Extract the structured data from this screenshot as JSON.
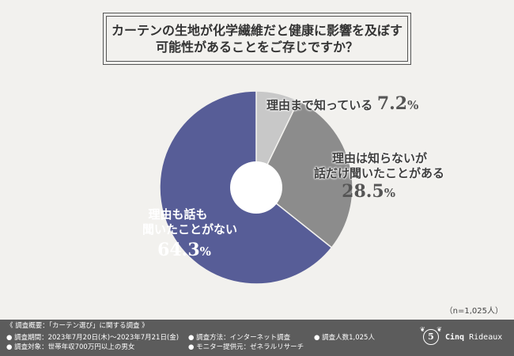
{
  "title": {
    "line1": "カーテンの生地が化学繊維だと健康に影響を及ぼす",
    "line2": "可能性があることをご存じですか？"
  },
  "chart_data": {
    "type": "pie",
    "donut": true,
    "slices": [
      {
        "label_line1": "理由まで知っている",
        "label_line2": "",
        "value": 7.2,
        "value_text": "7.2",
        "color": "#c8c8c8"
      },
      {
        "label_line1": "理由は知らないが",
        "label_line2": "話だけ聞いたことがある",
        "value": 28.5,
        "value_text": "28.5",
        "color": "#8c8c8c"
      },
      {
        "label_line1": "理由も話も",
        "label_line2": "聞いたことがない",
        "value": 64.3,
        "value_text": "64.3",
        "color": "#575d97"
      }
    ],
    "unit": "%",
    "start": "top, clockwise"
  },
  "note": "（n=1,025人）",
  "footer": {
    "heading": "《 調査概要：「カーテン選び」に関する調査 》",
    "period": "● 調査期間：2023年7月20日(木)～2023年7月21日(金)",
    "target": "● 調査対象：世帯年収700万円以上の男女",
    "method": "● 調査方法：インターネット調査",
    "monitor": "● モニター提供元：ゼネラルリサーチ",
    "count": "● 調査人数1,025人"
  },
  "brand": {
    "logo_mark": "5",
    "name_part1": "Cinq",
    "name_part2": "Rideaux"
  }
}
